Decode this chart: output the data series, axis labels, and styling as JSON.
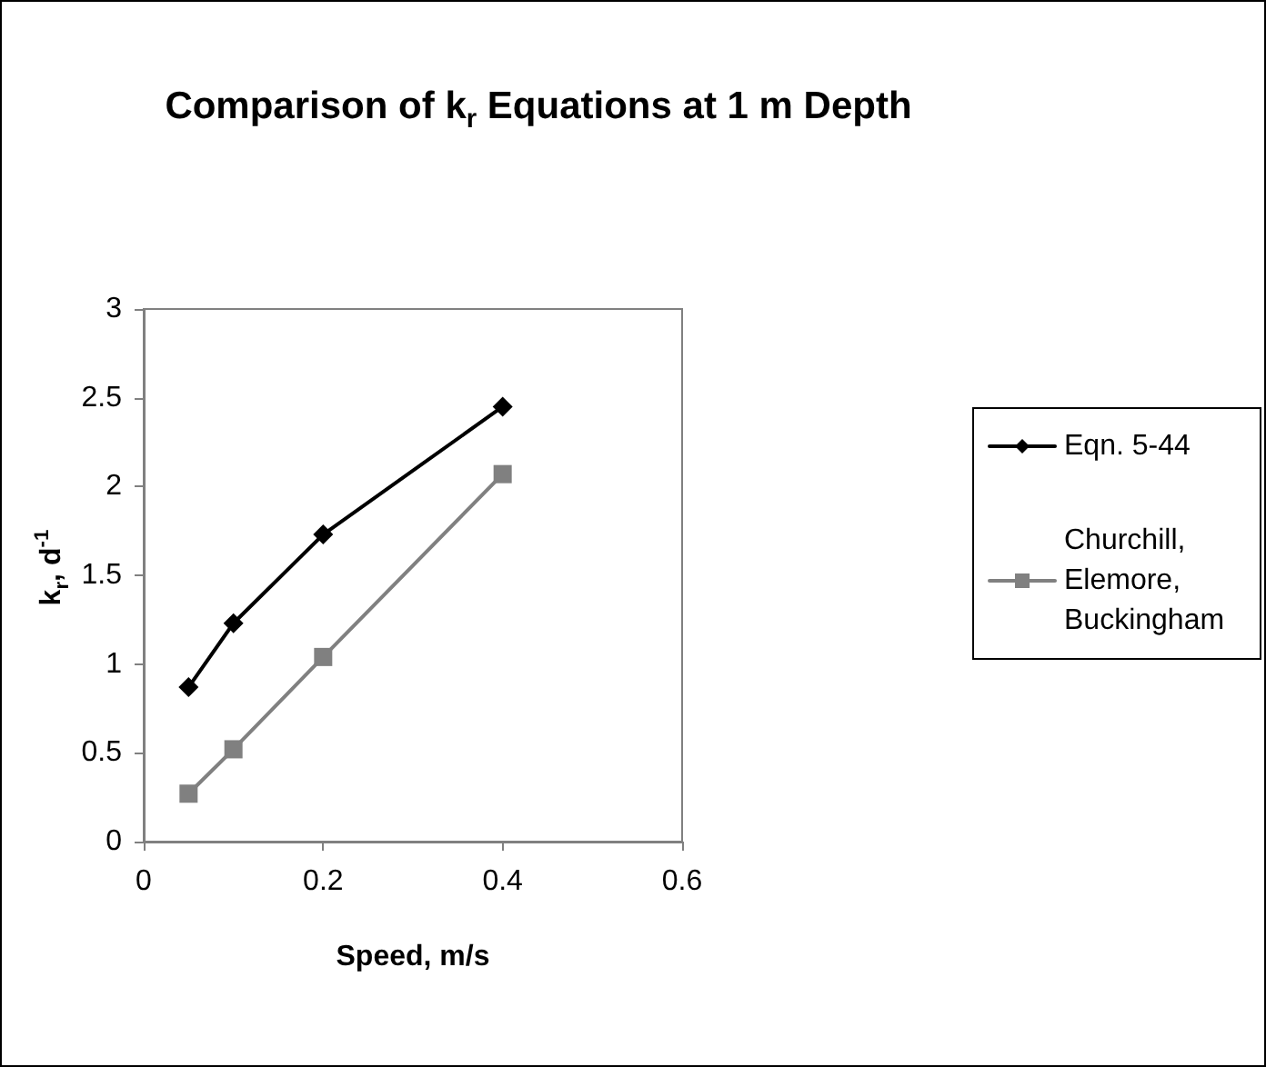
{
  "chart_data": {
    "type": "line",
    "title": "Comparison of k$_{r}$ Equations at 1 m Depth",
    "xlabel": "Speed, m/s",
    "ylabel": "k$_{r}$, d$^{-1}$",
    "x": [
      0.05,
      0.1,
      0.2,
      0.4
    ],
    "series": [
      {
        "name": "Eqn. 5-44",
        "color": "#000000",
        "marker": "diamond",
        "values": [
          0.87,
          1.23,
          1.73,
          2.45
        ]
      },
      {
        "name": "Churchill, Elemore, Buckingham",
        "color": "#808080",
        "marker": "square",
        "values": [
          0.27,
          0.52,
          1.04,
          2.07
        ]
      }
    ],
    "xlim": [
      0,
      0.6
    ],
    "xticks": [
      0,
      0.2,
      0.4,
      0.6
    ],
    "ylim": [
      0,
      3
    ],
    "yticks": [
      0,
      0.5,
      1,
      1.5,
      2,
      2.5,
      3
    ],
    "grid": false,
    "legend": "right",
    "line_style": "solid"
  }
}
